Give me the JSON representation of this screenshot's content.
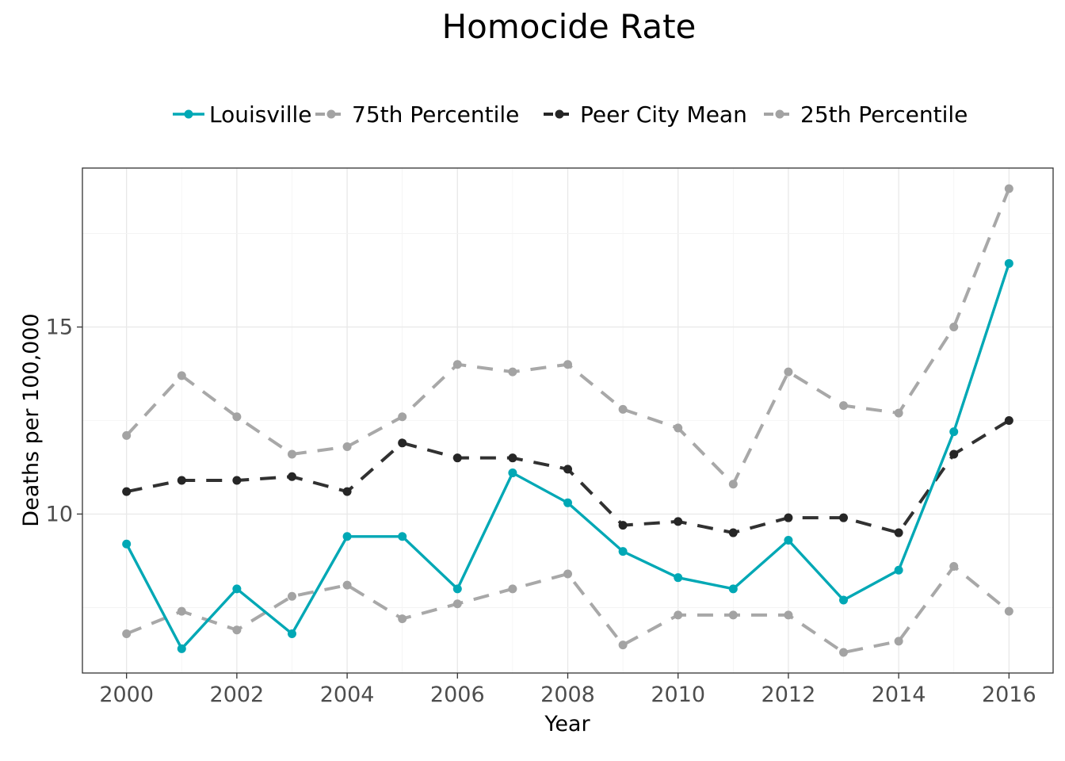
{
  "chart_data": {
    "type": "line",
    "title": "Homocide Rate",
    "xlabel": "Year",
    "ylabel": "Deaths per 100,000",
    "x": [
      2000,
      2001,
      2002,
      2003,
      2004,
      2005,
      2006,
      2007,
      2008,
      2009,
      2010,
      2011,
      2012,
      2013,
      2014,
      2015,
      2016
    ],
    "xlim": [
      1999.2,
      2016.8
    ],
    "ylim": [
      5.75,
      19.25
    ],
    "xticks": [
      2000,
      2002,
      2004,
      2006,
      2008,
      2010,
      2012,
      2014,
      2016
    ],
    "yticks": [
      10,
      15
    ],
    "grid": true,
    "legend_position": "top",
    "series": [
      {
        "name": "Louisville",
        "color": "#00a8b5",
        "style": "solid",
        "values": [
          9.2,
          6.4,
          8.0,
          6.8,
          9.4,
          9.4,
          8.0,
          11.1,
          10.3,
          9.0,
          8.3,
          8.0,
          9.3,
          7.7,
          8.5,
          12.2,
          16.7
        ]
      },
      {
        "name": "75th Percentile",
        "color": "#a3a3a3",
        "style": "dashed",
        "values": [
          12.1,
          13.7,
          12.6,
          11.6,
          11.8,
          12.6,
          14.0,
          13.8,
          14.0,
          12.8,
          12.3,
          10.8,
          13.8,
          12.9,
          12.7,
          15.0,
          18.7
        ]
      },
      {
        "name": "Peer City Mean",
        "color": "#262626",
        "style": "dashed",
        "values": [
          10.6,
          10.9,
          10.9,
          11.0,
          10.6,
          11.9,
          11.5,
          11.5,
          11.2,
          9.7,
          9.8,
          9.5,
          9.9,
          9.9,
          9.5,
          11.6,
          12.5
        ]
      },
      {
        "name": "25th Percentile",
        "color": "#a3a3a3",
        "style": "dashed",
        "values": [
          6.8,
          7.4,
          6.9,
          7.8,
          8.1,
          7.2,
          7.6,
          8.0,
          8.4,
          6.5,
          7.3,
          7.3,
          7.3,
          6.3,
          6.6,
          8.6,
          7.4
        ]
      }
    ]
  }
}
